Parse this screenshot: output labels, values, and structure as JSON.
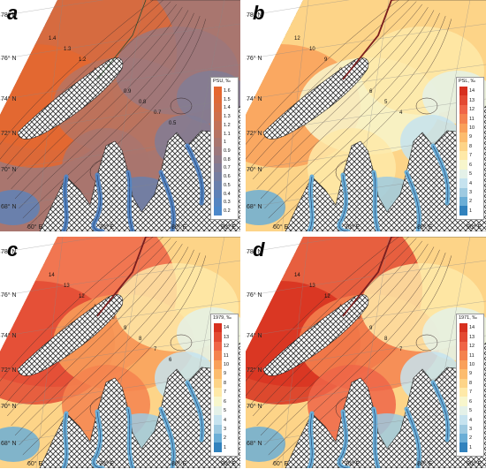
{
  "latitudes": [
    "78° N",
    "76° N",
    "74° N",
    "72° N",
    "70° N",
    "68° N"
  ],
  "longitudes": [
    "60° E",
    "70° E",
    "80° E",
    "90° E"
  ],
  "panels": [
    {
      "label": "a",
      "legend_title": "PSU, ‰",
      "ticks": [
        "1.6",
        "1.5",
        "1.4",
        "1.3",
        "1.2",
        "1.1",
        "1",
        "0.9",
        "0.8",
        "0.7",
        "0.6",
        "0.5",
        "0.4",
        "0.3",
        "0.2"
      ],
      "colors": [
        "#e5672f",
        "#de6a38",
        "#d66d42",
        "#cd704c",
        "#c27257",
        "#b67463",
        "#a9766f",
        "#9c787c",
        "#8e7a88",
        "#817c95",
        "#757ea1",
        "#6a80ac",
        "#5f82b7",
        "#5585c1",
        "#4c88ca"
      ],
      "contours": [
        "1.4",
        "1.3",
        "1.2",
        "1.1",
        "1",
        "0.9",
        "0.8",
        "0.7",
        "0.5"
      ]
    },
    {
      "label": "b",
      "legend_title": "PSL, ‰",
      "ticks": [
        "14",
        "13",
        "12",
        "11",
        "10",
        "9",
        "8",
        "7",
        "6",
        "5",
        "4",
        "3",
        "2",
        "1"
      ],
      "colors": [
        "#d7301f",
        "#e34a33",
        "#ef6548",
        "#f4824f",
        "#f9a05a",
        "#fcbc6e",
        "#fdd488",
        "#fee9a8",
        "#f7f6cc",
        "#e4f1e8",
        "#c6e3ef",
        "#9ecae1",
        "#6baed6",
        "#3182bd"
      ],
      "contours": [
        "12",
        "10",
        "9",
        "8",
        "7",
        "6",
        "5",
        "4"
      ]
    },
    {
      "label": "c",
      "legend_title": "1979, ‰",
      "ticks": [
        "14",
        "13",
        "12",
        "11",
        "10",
        "9",
        "8",
        "7",
        "6",
        "5",
        "4",
        "3",
        "2",
        "1"
      ],
      "colors": [
        "#d7301f",
        "#e34a33",
        "#ef6548",
        "#f4824f",
        "#f9a05a",
        "#fcbc6e",
        "#fdd488",
        "#fee9a8",
        "#f7f6cc",
        "#e4f1e8",
        "#c6e3ef",
        "#9ecae1",
        "#6baed6",
        "#3182bd"
      ],
      "contours": [
        "14",
        "13",
        "12",
        "11",
        "10",
        "9",
        "8",
        "7",
        "6"
      ]
    },
    {
      "label": "d",
      "legend_title": "1971, ‰",
      "ticks": [
        "14",
        "13",
        "12",
        "11",
        "10",
        "9",
        "8",
        "7",
        "6",
        "5",
        "4",
        "3",
        "2",
        "1"
      ],
      "colors": [
        "#d7301f",
        "#e34a33",
        "#ef6548",
        "#f4824f",
        "#f9a05a",
        "#fcbc6e",
        "#fdd488",
        "#fee9a8",
        "#f7f6cc",
        "#e4f1e8",
        "#c6e3ef",
        "#9ecae1",
        "#6baed6",
        "#3182bd"
      ],
      "contours": [
        "14",
        "13",
        "12",
        "11",
        "10",
        "9",
        "8",
        "7"
      ]
    }
  ]
}
